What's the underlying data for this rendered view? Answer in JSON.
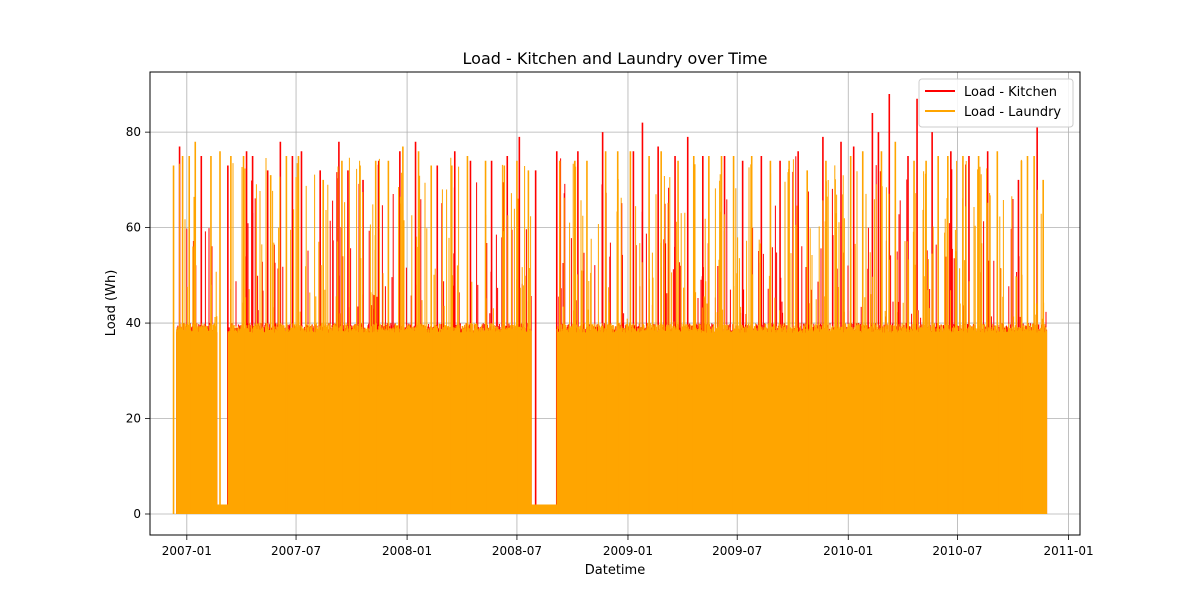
{
  "chart_data": {
    "type": "line",
    "title": "Load - Kitchen and Laundry over Time",
    "xlabel": "Datetime",
    "ylabel": "Load (Wh)",
    "xlim": [
      "2006-11-01",
      "2011-01-20"
    ],
    "ylim": [
      -4.4,
      92.6
    ],
    "x_ticks": [
      "2007-01",
      "2007-07",
      "2008-01",
      "2008-07",
      "2009-01",
      "2009-07",
      "2010-01",
      "2010-07",
      "2011-01"
    ],
    "y_ticks": [
      0,
      20,
      40,
      60,
      80
    ],
    "grid": true,
    "legend_position": "top-right",
    "colors": {
      "Load - Kitchen": "#ff0000",
      "Load - Laundry": "#ffa500"
    },
    "series": [
      {
        "name": "Load - Kitchen",
        "peaks": [
          [
            "2006-12-20",
            77
          ],
          [
            "2007-01-25",
            75
          ],
          [
            "2007-03-10",
            73
          ],
          [
            "2007-04-10",
            76
          ],
          [
            "2007-04-20",
            75
          ],
          [
            "2007-05-15",
            72
          ],
          [
            "2007-06-05",
            78
          ],
          [
            "2007-06-25",
            75
          ],
          [
            "2007-07-10",
            76
          ],
          [
            "2007-08-10",
            72
          ],
          [
            "2007-09-10",
            78
          ],
          [
            "2007-09-25",
            72
          ],
          [
            "2007-10-20",
            70
          ],
          [
            "2007-11-15",
            74
          ],
          [
            "2007-12-20",
            76
          ],
          [
            "2008-01-15",
            78
          ],
          [
            "2008-02-20",
            73
          ],
          [
            "2008-03-20",
            76
          ],
          [
            "2008-04-15",
            74
          ],
          [
            "2008-05-20",
            74
          ],
          [
            "2008-06-15",
            75
          ],
          [
            "2008-07-05",
            79
          ],
          [
            "2008-08-01",
            72
          ],
          [
            "2008-09-05",
            76
          ],
          [
            "2008-10-10",
            76
          ],
          [
            "2008-11-20",
            80
          ],
          [
            "2009-01-10",
            76
          ],
          [
            "2009-01-25",
            82
          ],
          [
            "2009-02-20",
            77
          ],
          [
            "2009-03-20",
            75
          ],
          [
            "2009-04-10",
            79
          ],
          [
            "2009-05-05",
            75
          ],
          [
            "2009-06-10",
            75
          ],
          [
            "2009-07-10",
            74
          ],
          [
            "2009-08-10",
            75
          ],
          [
            "2009-09-10",
            74
          ],
          [
            "2009-10-10",
            76
          ],
          [
            "2009-11-20",
            79
          ],
          [
            "2009-12-20",
            78
          ],
          [
            "2010-01-10",
            77
          ],
          [
            "2010-02-10",
            84
          ],
          [
            "2010-02-20",
            80
          ],
          [
            "2010-03-10",
            88
          ],
          [
            "2010-04-10",
            75
          ],
          [
            "2010-04-25",
            87
          ],
          [
            "2010-05-20",
            80
          ],
          [
            "2010-06-20",
            76
          ],
          [
            "2010-07-20",
            75
          ],
          [
            "2010-08-20",
            76
          ],
          [
            "2010-10-10",
            70
          ],
          [
            "2010-11-10",
            81
          ]
        ]
      },
      {
        "name": "Load - Laundry",
        "peaks": [
          [
            "2006-12-10",
            73
          ],
          [
            "2006-12-25",
            75
          ],
          [
            "2007-01-05",
            75
          ],
          [
            "2007-01-15",
            78
          ],
          [
            "2007-02-10",
            75
          ],
          [
            "2007-02-25",
            76
          ],
          [
            "2007-03-15",
            75
          ],
          [
            "2007-04-05",
            75
          ],
          [
            "2007-05-20",
            71
          ],
          [
            "2007-06-15",
            75
          ],
          [
            "2007-07-05",
            75
          ],
          [
            "2007-08-15",
            70
          ],
          [
            "2007-09-15",
            74
          ],
          [
            "2007-10-15",
            73
          ],
          [
            "2007-11-10",
            74
          ],
          [
            "2007-12-01",
            74
          ],
          [
            "2007-12-25",
            77
          ],
          [
            "2008-01-20",
            76
          ],
          [
            "2008-02-10",
            73
          ],
          [
            "2008-03-15",
            73
          ],
          [
            "2008-04-10",
            75
          ],
          [
            "2008-05-10",
            74
          ],
          [
            "2008-06-10",
            73
          ],
          [
            "2008-07-01",
            74
          ],
          [
            "2008-07-20",
            72
          ],
          [
            "2008-09-10",
            74
          ],
          [
            "2008-10-05",
            74
          ],
          [
            "2008-10-25",
            74
          ],
          [
            "2008-11-25",
            76
          ],
          [
            "2008-12-15",
            76
          ],
          [
            "2009-01-05",
            76
          ],
          [
            "2009-02-05",
            75
          ],
          [
            "2009-02-25",
            76
          ],
          [
            "2009-03-25",
            74
          ],
          [
            "2009-04-20",
            75
          ],
          [
            "2009-05-15",
            75
          ],
          [
            "2009-06-05",
            75
          ],
          [
            "2009-06-25",
            75
          ],
          [
            "2009-07-25",
            75
          ],
          [
            "2009-08-25",
            74
          ],
          [
            "2009-09-25",
            74
          ],
          [
            "2009-10-25",
            72
          ],
          [
            "2009-11-25",
            74
          ],
          [
            "2010-01-05",
            75
          ],
          [
            "2010-01-25",
            76
          ],
          [
            "2010-02-25",
            76
          ],
          [
            "2010-03-20",
            78
          ],
          [
            "2010-04-20",
            74
          ],
          [
            "2010-05-10",
            74
          ],
          [
            "2010-05-30",
            75
          ],
          [
            "2010-06-15",
            75
          ],
          [
            "2010-07-10",
            75
          ],
          [
            "2010-08-05",
            75
          ],
          [
            "2010-09-05",
            76
          ],
          [
            "2010-10-15",
            74
          ],
          [
            "2010-10-25",
            75
          ],
          [
            "2010-11-05",
            75
          ],
          [
            "2010-11-20",
            70
          ]
        ]
      }
    ]
  }
}
